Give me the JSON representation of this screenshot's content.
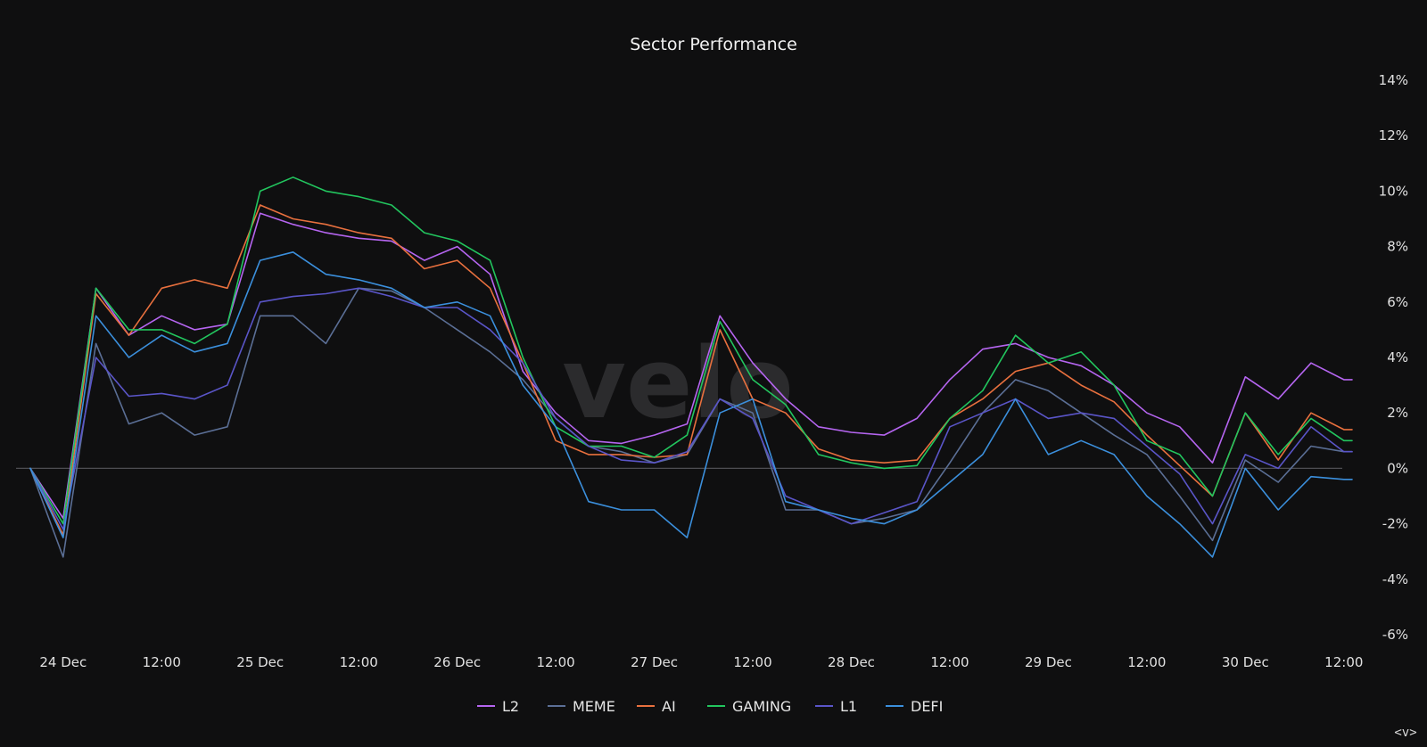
{
  "watermark": "velo",
  "corner_label": "<v>",
  "chart_data": {
    "type": "line",
    "title": "Sector Performance",
    "xlabel": "",
    "ylabel": "",
    "y_axis_side": "right",
    "ylim": [
      -6,
      14
    ],
    "yticks": [
      14,
      12,
      10,
      8,
      6,
      4,
      2,
      0,
      -2,
      -4,
      -6
    ],
    "ytick_labels": [
      "14%",
      "12%",
      "10%",
      "8%",
      "6%",
      "4%",
      "2%",
      "0%",
      "-2%",
      "-4%",
      "-6%"
    ],
    "xlim": [
      "23 Dec 20:00",
      "30 Dec 13:00"
    ],
    "x_ticks": [
      {
        "label": "24 Dec",
        "t": "24 Dec 00:00"
      },
      {
        "label": "12:00",
        "t": "24 Dec 12:00"
      },
      {
        "label": "25 Dec",
        "t": "25 Dec 00:00"
      },
      {
        "label": "12:00",
        "t": "25 Dec 12:00"
      },
      {
        "label": "26 Dec",
        "t": "26 Dec 00:00"
      },
      {
        "label": "12:00",
        "t": "26 Dec 12:00"
      },
      {
        "label": "27 Dec",
        "t": "27 Dec 00:00"
      },
      {
        "label": "12:00",
        "t": "27 Dec 12:00"
      },
      {
        "label": "28 Dec",
        "t": "28 Dec 00:00"
      },
      {
        "label": "12:00",
        "t": "28 Dec 12:00"
      },
      {
        "label": "29 Dec",
        "t": "29 Dec 00:00"
      },
      {
        "label": "12:00",
        "t": "29 Dec 12:00"
      },
      {
        "label": "30 Dec",
        "t": "30 Dec 00:00"
      },
      {
        "label": "12:00",
        "t": "30 Dec 12:00"
      }
    ],
    "zero_line": true,
    "legend_position": "bottom-center",
    "x": [
      "23 Dec 20:00",
      "24 Dec 00:00",
      "24 Dec 04:00",
      "24 Dec 08:00",
      "24 Dec 12:00",
      "24 Dec 16:00",
      "24 Dec 20:00",
      "25 Dec 00:00",
      "25 Dec 04:00",
      "25 Dec 08:00",
      "25 Dec 12:00",
      "25 Dec 16:00",
      "25 Dec 20:00",
      "26 Dec 00:00",
      "26 Dec 04:00",
      "26 Dec 08:00",
      "26 Dec 12:00",
      "26 Dec 16:00",
      "26 Dec 20:00",
      "27 Dec 00:00",
      "27 Dec 04:00",
      "27 Dec 08:00",
      "27 Dec 12:00",
      "27 Dec 16:00",
      "27 Dec 20:00",
      "28 Dec 00:00",
      "28 Dec 04:00",
      "28 Dec 08:00",
      "28 Dec 12:00",
      "28 Dec 16:00",
      "28 Dec 20:00",
      "29 Dec 00:00",
      "29 Dec 04:00",
      "29 Dec 08:00",
      "29 Dec 12:00",
      "29 Dec 16:00",
      "29 Dec 20:00",
      "30 Dec 00:00",
      "30 Dec 04:00",
      "30 Dec 08:00",
      "30 Dec 12:00",
      "30 Dec 13:00"
    ],
    "series": [
      {
        "name": "L2",
        "color": "#b565f0",
        "values": [
          0,
          -1.8,
          6.5,
          4.8,
          5.5,
          5.0,
          5.2,
          9.2,
          8.8,
          8.5,
          8.3,
          8.2,
          7.5,
          8.0,
          7.0,
          3.5,
          2.0,
          1.0,
          0.9,
          1.2,
          1.6,
          5.5,
          3.8,
          2.5,
          1.5,
          1.3,
          1.2,
          1.8,
          3.2,
          4.3,
          4.5,
          4.0,
          3.7,
          3.0,
          2.0,
          1.5,
          0.2,
          3.3,
          2.5,
          3.8,
          3.2,
          3.2
        ]
      },
      {
        "name": "MEME",
        "color": "#5b6f96",
        "values": [
          0,
          -3.2,
          4.5,
          1.6,
          2.0,
          1.2,
          1.5,
          5.5,
          5.5,
          4.5,
          6.5,
          6.4,
          5.8,
          5.0,
          4.2,
          3.2,
          1.8,
          0.8,
          0.6,
          0.2,
          0.5,
          2.5,
          2.0,
          -1.5,
          -1.5,
          -2.0,
          -1.8,
          -1.5,
          0.2,
          2.0,
          3.2,
          2.8,
          2.0,
          1.2,
          0.5,
          -1.0,
          -2.6,
          0.3,
          -0.5,
          0.8,
          0.6,
          0.6
        ]
      },
      {
        "name": "AI",
        "color": "#e8703e",
        "values": [
          0,
          -2.4,
          6.3,
          4.8,
          6.5,
          6.8,
          6.5,
          9.5,
          9.0,
          8.8,
          8.5,
          8.3,
          7.2,
          7.5,
          6.5,
          3.8,
          1.0,
          0.5,
          0.5,
          0.4,
          0.5,
          5.0,
          2.5,
          2.0,
          0.7,
          0.3,
          0.2,
          0.3,
          1.8,
          2.5,
          3.5,
          3.8,
          3.0,
          2.4,
          1.2,
          0.1,
          -1.0,
          2.0,
          0.3,
          2.0,
          1.4,
          1.4
        ]
      },
      {
        "name": "GAMING",
        "color": "#22c55e",
        "values": [
          0,
          -2.0,
          6.5,
          5.0,
          5.0,
          4.5,
          5.2,
          10.0,
          10.5,
          10.0,
          9.8,
          9.5,
          8.5,
          8.2,
          7.5,
          4.0,
          1.5,
          0.8,
          0.8,
          0.4,
          1.2,
          5.3,
          3.2,
          2.3,
          0.5,
          0.2,
          0.0,
          0.1,
          1.8,
          2.8,
          4.8,
          3.8,
          4.2,
          3.0,
          1.0,
          0.5,
          -1.0,
          2.0,
          0.5,
          1.8,
          1.0,
          1.0
        ]
      },
      {
        "name": "L1",
        "color": "#5a55c8",
        "values": [
          0,
          -2.2,
          4.0,
          2.6,
          2.7,
          2.5,
          3.0,
          6.0,
          6.2,
          6.3,
          6.5,
          6.2,
          5.8,
          5.8,
          5.0,
          3.8,
          1.8,
          0.8,
          0.3,
          0.2,
          0.6,
          2.5,
          1.8,
          -1.0,
          -1.5,
          -2.0,
          -1.6,
          -1.2,
          1.5,
          2.0,
          2.5,
          1.8,
          2.0,
          1.8,
          0.8,
          -0.2,
          -2.0,
          0.5,
          0.0,
          1.5,
          0.6,
          0.6
        ]
      },
      {
        "name": "DEFI",
        "color": "#3b8fdc",
        "values": [
          0,
          -2.5,
          5.5,
          4.0,
          4.8,
          4.2,
          4.5,
          7.5,
          7.8,
          7.0,
          6.8,
          6.5,
          5.8,
          6.0,
          5.5,
          3.0,
          1.5,
          -1.2,
          -1.5,
          -1.5,
          -2.5,
          2.0,
          2.5,
          -1.2,
          -1.5,
          -1.8,
          -2.0,
          -1.5,
          -0.5,
          0.5,
          2.5,
          0.5,
          1.0,
          0.5,
          -1.0,
          -2.0,
          -3.2,
          0.0,
          -1.5,
          -0.3,
          -0.4,
          -0.4
        ]
      }
    ]
  }
}
